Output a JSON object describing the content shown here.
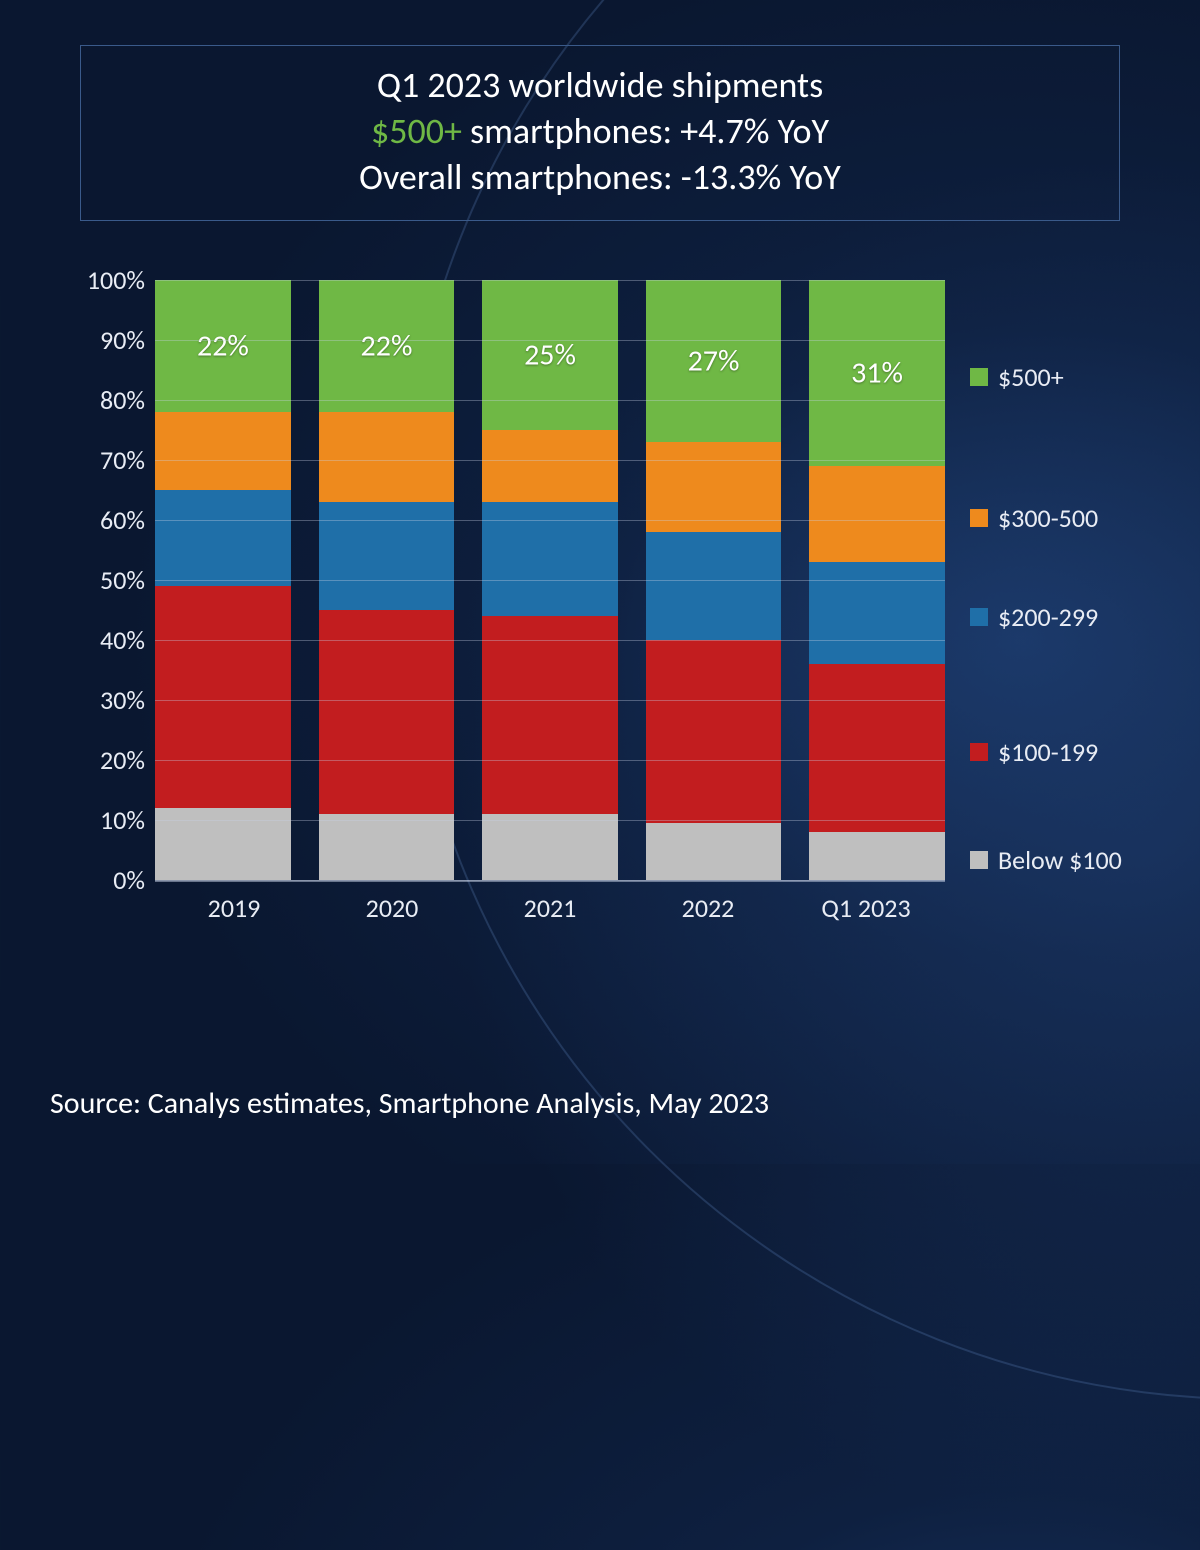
{
  "background_color": "#0e2245",
  "title": {
    "line1": "Q1 2023 worldwide shipments",
    "line2_prefix": "$500+",
    "line2_rest": " smartphones: +4.7% YoY",
    "line3": "Overall smartphones: -13.3% YoY",
    "highlight_color": "#6fb845",
    "text_color": "#ffffff",
    "fontsize": 36,
    "border_color": "#3a5a8a"
  },
  "chart": {
    "type": "stacked-bar-100",
    "categories": [
      "2019",
      "2020",
      "2021",
      "2022",
      "Q1 2023"
    ],
    "series_order_bottom_to_top": [
      "below_100",
      "s100_199",
      "s200_299",
      "s300_500",
      "s500_plus"
    ],
    "series": {
      "below_100": {
        "label": "Below $100",
        "color": "#bfbfbf"
      },
      "s100_199": {
        "label": "$100-199",
        "color": "#c21d1f"
      },
      "s200_299": {
        "label": "$200-299",
        "color": "#1f6fa8"
      },
      "s300_500": {
        "label": "$300-500",
        "color": "#ee8a1d"
      },
      "s500_plus": {
        "label": "$500+",
        "color": "#6fb845"
      }
    },
    "top_segment_labels": [
      "22%",
      "22%",
      "25%",
      "27%",
      "31%"
    ],
    "values_pct": {
      "2019": {
        "below_100": 12,
        "s100_199": 37,
        "s200_299": 16,
        "s300_500": 13,
        "s500_plus": 22
      },
      "2020": {
        "below_100": 11,
        "s100_199": 34,
        "s200_299": 18,
        "s300_500": 15,
        "s500_plus": 22
      },
      "2021": {
        "below_100": 11,
        "s100_199": 33,
        "s200_299": 19,
        "s300_500": 12,
        "s500_plus": 25
      },
      "2022": {
        "below_100": 9.5,
        "s100_199": 30.5,
        "s200_299": 18,
        "s300_500": 15,
        "s500_plus": 27
      },
      "Q1 2023": {
        "below_100": 8,
        "s100_199": 28,
        "s200_299": 17,
        "s300_500": 16,
        "s500_plus": 31
      }
    },
    "y_axis": {
      "ylim": [
        0,
        100
      ],
      "tick_step": 10,
      "tick_labels": [
        "0%",
        "10%",
        "20%",
        "30%",
        "40%",
        "50%",
        "60%",
        "70%",
        "80%",
        "90%",
        "100%"
      ],
      "tick_fontsize": 26,
      "grid_color": "rgba(200,210,230,0.35)"
    },
    "x_axis": {
      "tick_fontsize": 26
    },
    "bar_width_pct_of_slot": 0.86,
    "segment_label_fontsize": 30,
    "legend": {
      "position": "right",
      "order_top_to_bottom": [
        "s500_plus",
        "s300_500",
        "s200_299",
        "s100_199",
        "below_100"
      ],
      "fontsize": 26,
      "swatch_size": 18
    }
  },
  "source": {
    "text": "Source: Canalys estimates, Smartphone Analysis, May 2023",
    "fontsize": 30,
    "color": "#ffffff"
  }
}
